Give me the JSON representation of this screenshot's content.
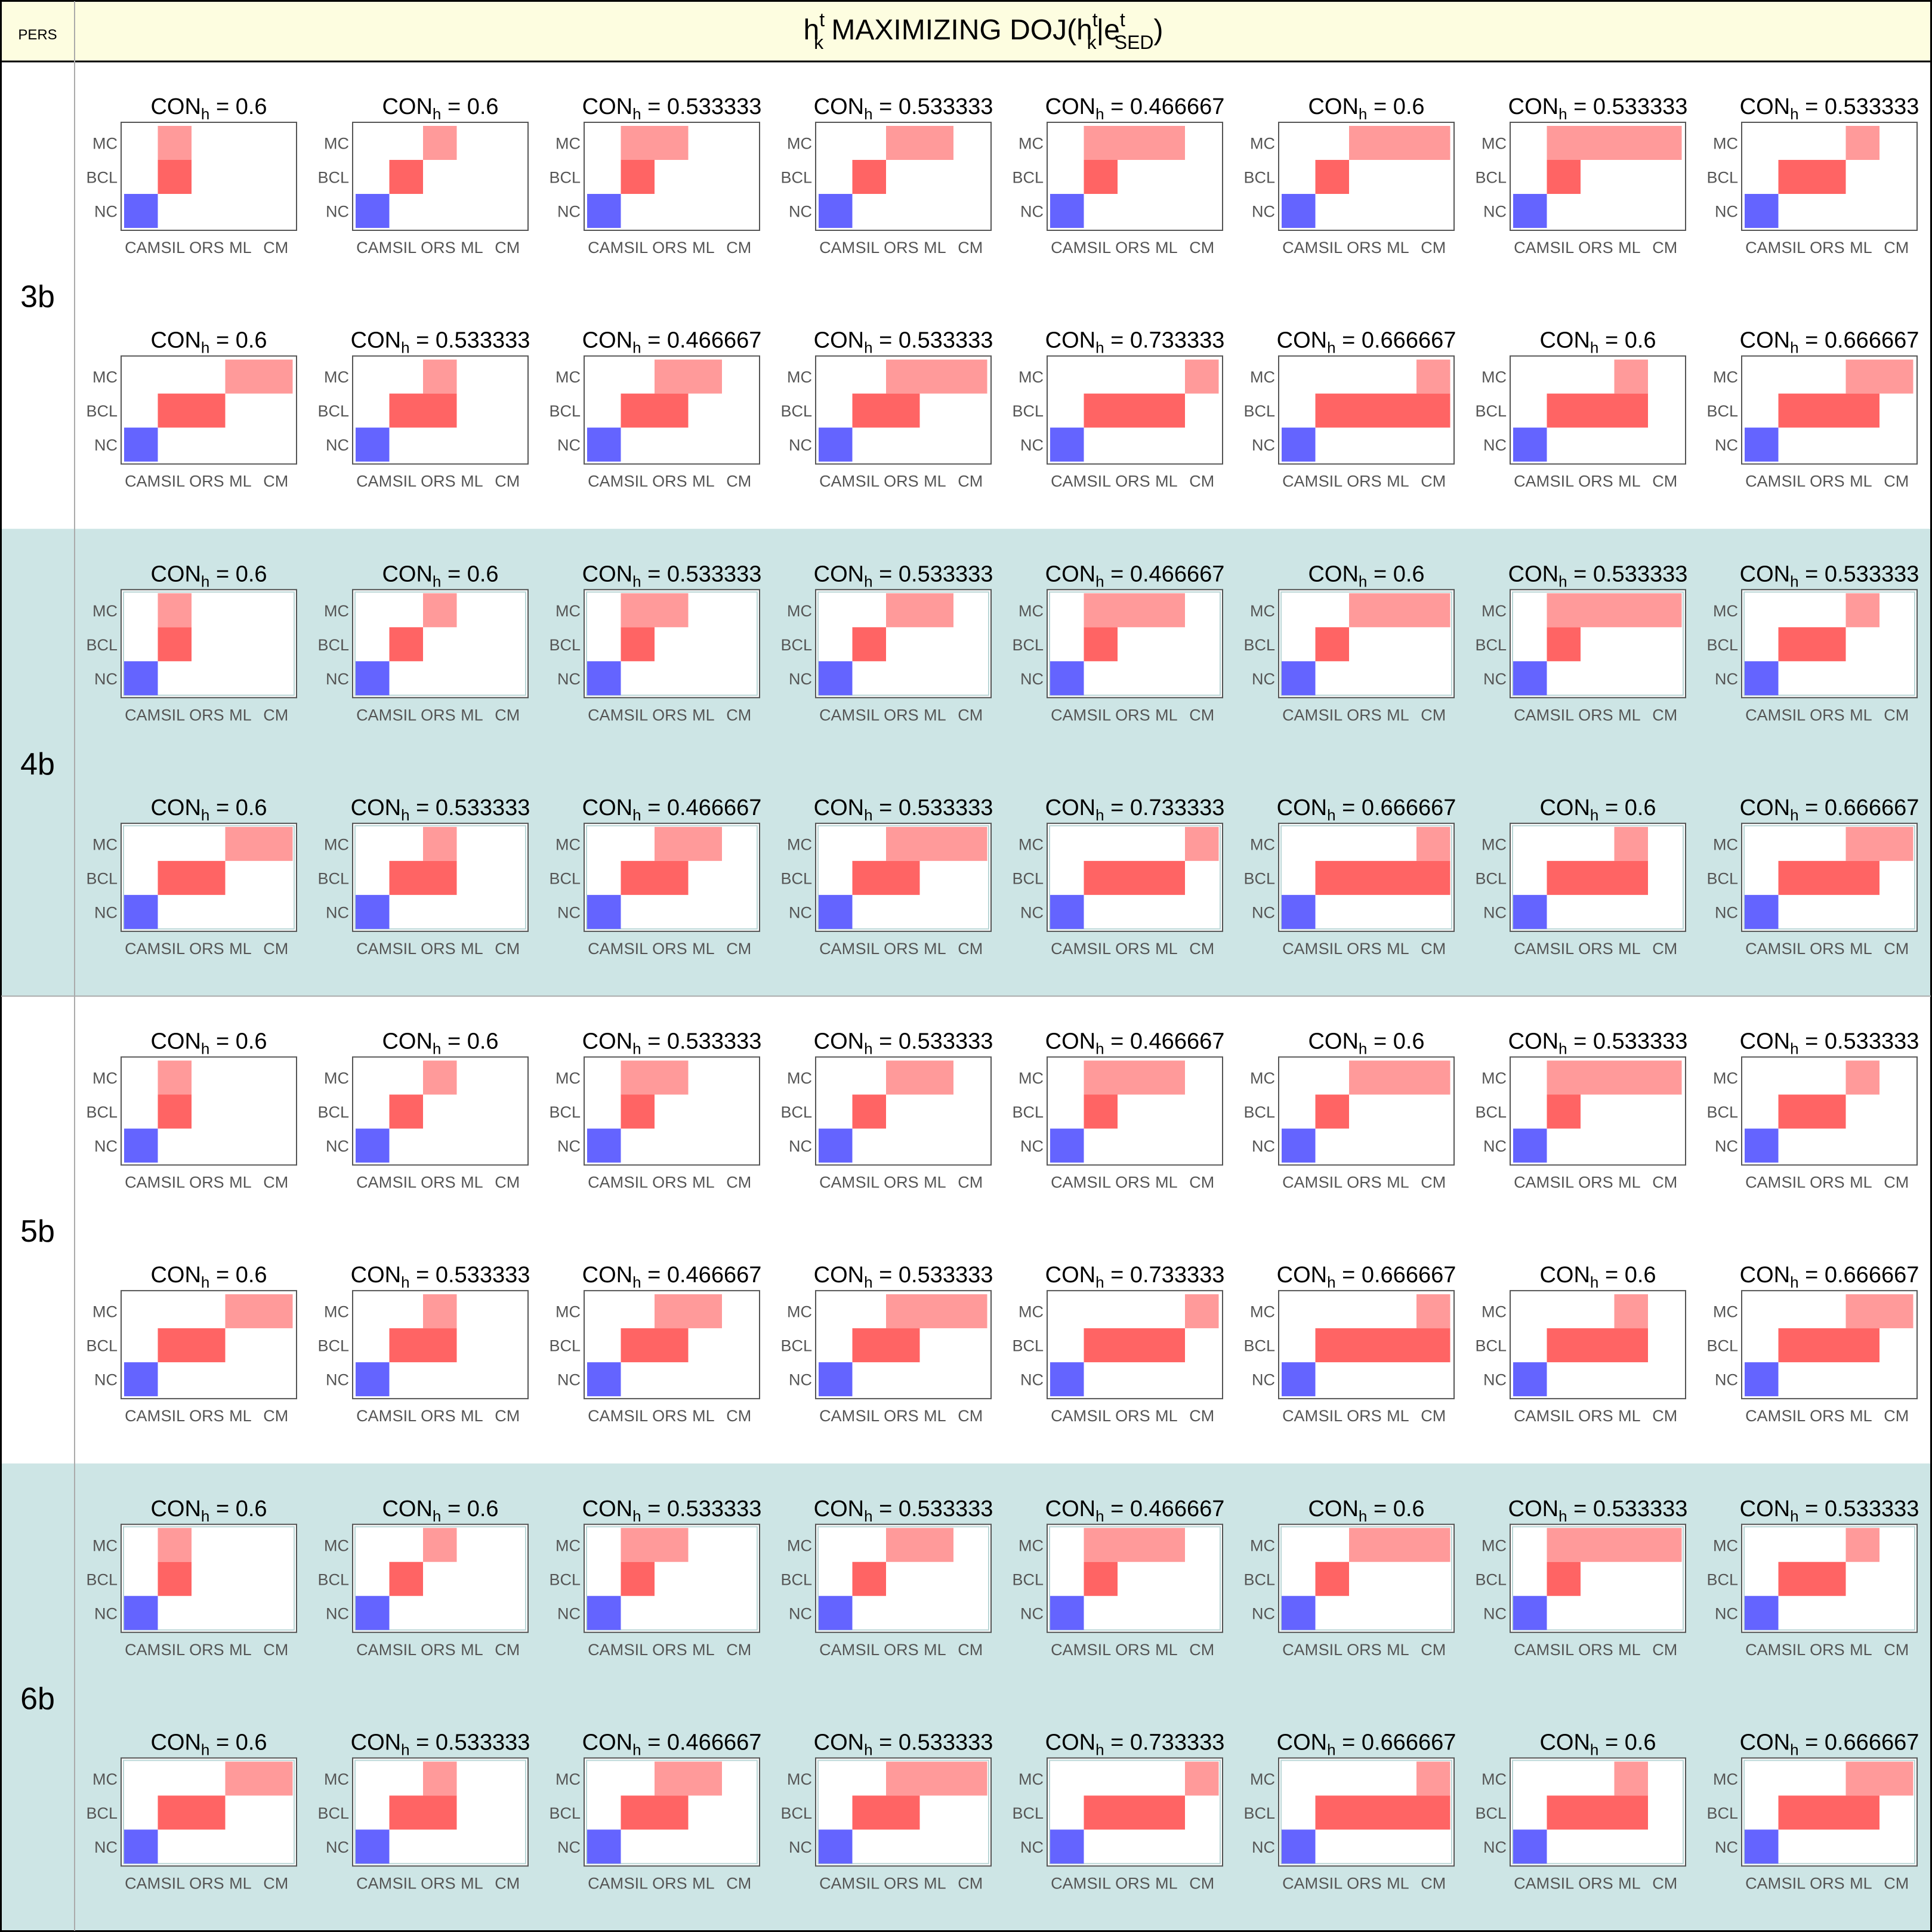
{
  "table": {
    "corner_label": "PERS",
    "title": {
      "h": "h",
      "k": "k",
      "t": "t",
      "mid": " MAXIMIZING DOJ(",
      "bar": "|e",
      "sed": "SED",
      "close": ")"
    }
  },
  "colors": {
    "header_bg": "#fdfde0",
    "band_shaded": "#cde5e5",
    "band_plain": "#ffffff",
    "grid_line": "#aaaaaa",
    "outer_border": "#000000",
    "mc": "#ff9a9a",
    "bcl": "#ff6464",
    "nc": "#6464ff",
    "axis_text": "#555555"
  },
  "chart_data": {
    "type": "heatmap",
    "description_of_cells": "x category index 0..5 (CAM, SIL, ORS, ML, CM), y category NC / BCL / MC; each cell spans one x position",
    "x_categories": [
      "CAM",
      "SIL",
      "ORS",
      "ML",
      "CM"
    ],
    "y_categories": [
      "NC",
      "BCL",
      "MC"
    ],
    "title_prefix": "CON",
    "title_sub": "h",
    "title_eq": " = ",
    "bands": [
      {
        "label": "3b",
        "shaded": false
      },
      {
        "label": "4b",
        "shaded": true
      },
      {
        "label": "5b",
        "shaded": false
      },
      {
        "label": "6b",
        "shaded": true
      }
    ],
    "panels": [
      {
        "con": "0.6",
        "nc": [
          0,
          1
        ],
        "bcl": [
          1,
          2
        ],
        "mc": [
          1,
          2
        ]
      },
      {
        "con": "0.6",
        "nc": [
          0,
          1
        ],
        "bcl": [
          1,
          2
        ],
        "mc": [
          2,
          3
        ]
      },
      {
        "con": "0.533333",
        "nc": [
          0,
          1
        ],
        "bcl": [
          1,
          2
        ],
        "mc": [
          1,
          3
        ]
      },
      {
        "con": "0.533333",
        "nc": [
          0,
          1
        ],
        "bcl": [
          1,
          2
        ],
        "mc": [
          2,
          4
        ]
      },
      {
        "con": "0.466667",
        "nc": [
          0,
          1
        ],
        "bcl": [
          1,
          2
        ],
        "mc": [
          1,
          4
        ]
      },
      {
        "con": "0.6",
        "nc": [
          0,
          1
        ],
        "bcl": [
          1,
          2
        ],
        "mc": [
          2,
          5
        ]
      },
      {
        "con": "0.533333",
        "nc": [
          0,
          1
        ],
        "bcl": [
          1,
          2
        ],
        "mc": [
          1,
          5
        ]
      },
      {
        "con": "0.533333",
        "nc": [
          0,
          1
        ],
        "bcl": [
          1,
          3
        ],
        "mc": [
          3,
          4
        ]
      },
      {
        "con": "0.6",
        "nc": [
          0,
          1
        ],
        "bcl": [
          1,
          3
        ],
        "mc": [
          3,
          5
        ]
      },
      {
        "con": "0.533333",
        "nc": [
          0,
          1
        ],
        "bcl": [
          1,
          3
        ],
        "mc": [
          2,
          3
        ]
      },
      {
        "con": "0.466667",
        "nc": [
          0,
          1
        ],
        "bcl": [
          1,
          3
        ],
        "mc": [
          2,
          4
        ]
      },
      {
        "con": "0.533333",
        "nc": [
          0,
          1
        ],
        "bcl": [
          1,
          3
        ],
        "mc": [
          2,
          5
        ]
      },
      {
        "con": "0.733333",
        "nc": [
          0,
          1
        ],
        "bcl": [
          1,
          4
        ],
        "mc": [
          4,
          5
        ]
      },
      {
        "con": "0.666667",
        "nc": [
          0,
          1
        ],
        "bcl": [
          1,
          5
        ],
        "mc": [
          4,
          5
        ]
      },
      {
        "con": "0.6",
        "nc": [
          0,
          1
        ],
        "bcl": [
          1,
          4
        ],
        "mc": [
          3,
          4
        ]
      },
      {
        "con": "0.666667",
        "nc": [
          0,
          1
        ],
        "bcl": [
          1,
          4
        ],
        "mc": [
          3,
          5
        ]
      }
    ]
  }
}
